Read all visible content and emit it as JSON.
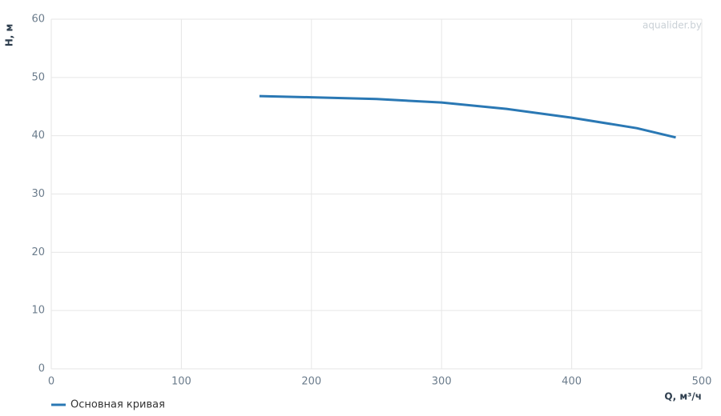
{
  "chart_data": {
    "type": "line",
    "x": [
      160,
      200,
      250,
      300,
      350,
      400,
      450,
      480
    ],
    "series": [
      {
        "name": "Основная кривая",
        "color": "#2a78b4",
        "values": [
          46.8,
          46.6,
          46.3,
          45.7,
          44.6,
          43.1,
          41.3,
          39.7
        ]
      }
    ],
    "xlim": [
      0,
      500
    ],
    "xticks": [
      0,
      100,
      200,
      300,
      400,
      500
    ],
    "ylim": [
      0,
      60
    ],
    "yticks": [
      0,
      10,
      20,
      30,
      40,
      50,
      60
    ],
    "x_label": "Q, м³/ч",
    "y_label": "H, м",
    "watermark": "aqualider.by",
    "grid": true,
    "legend": "bottom-left"
  }
}
